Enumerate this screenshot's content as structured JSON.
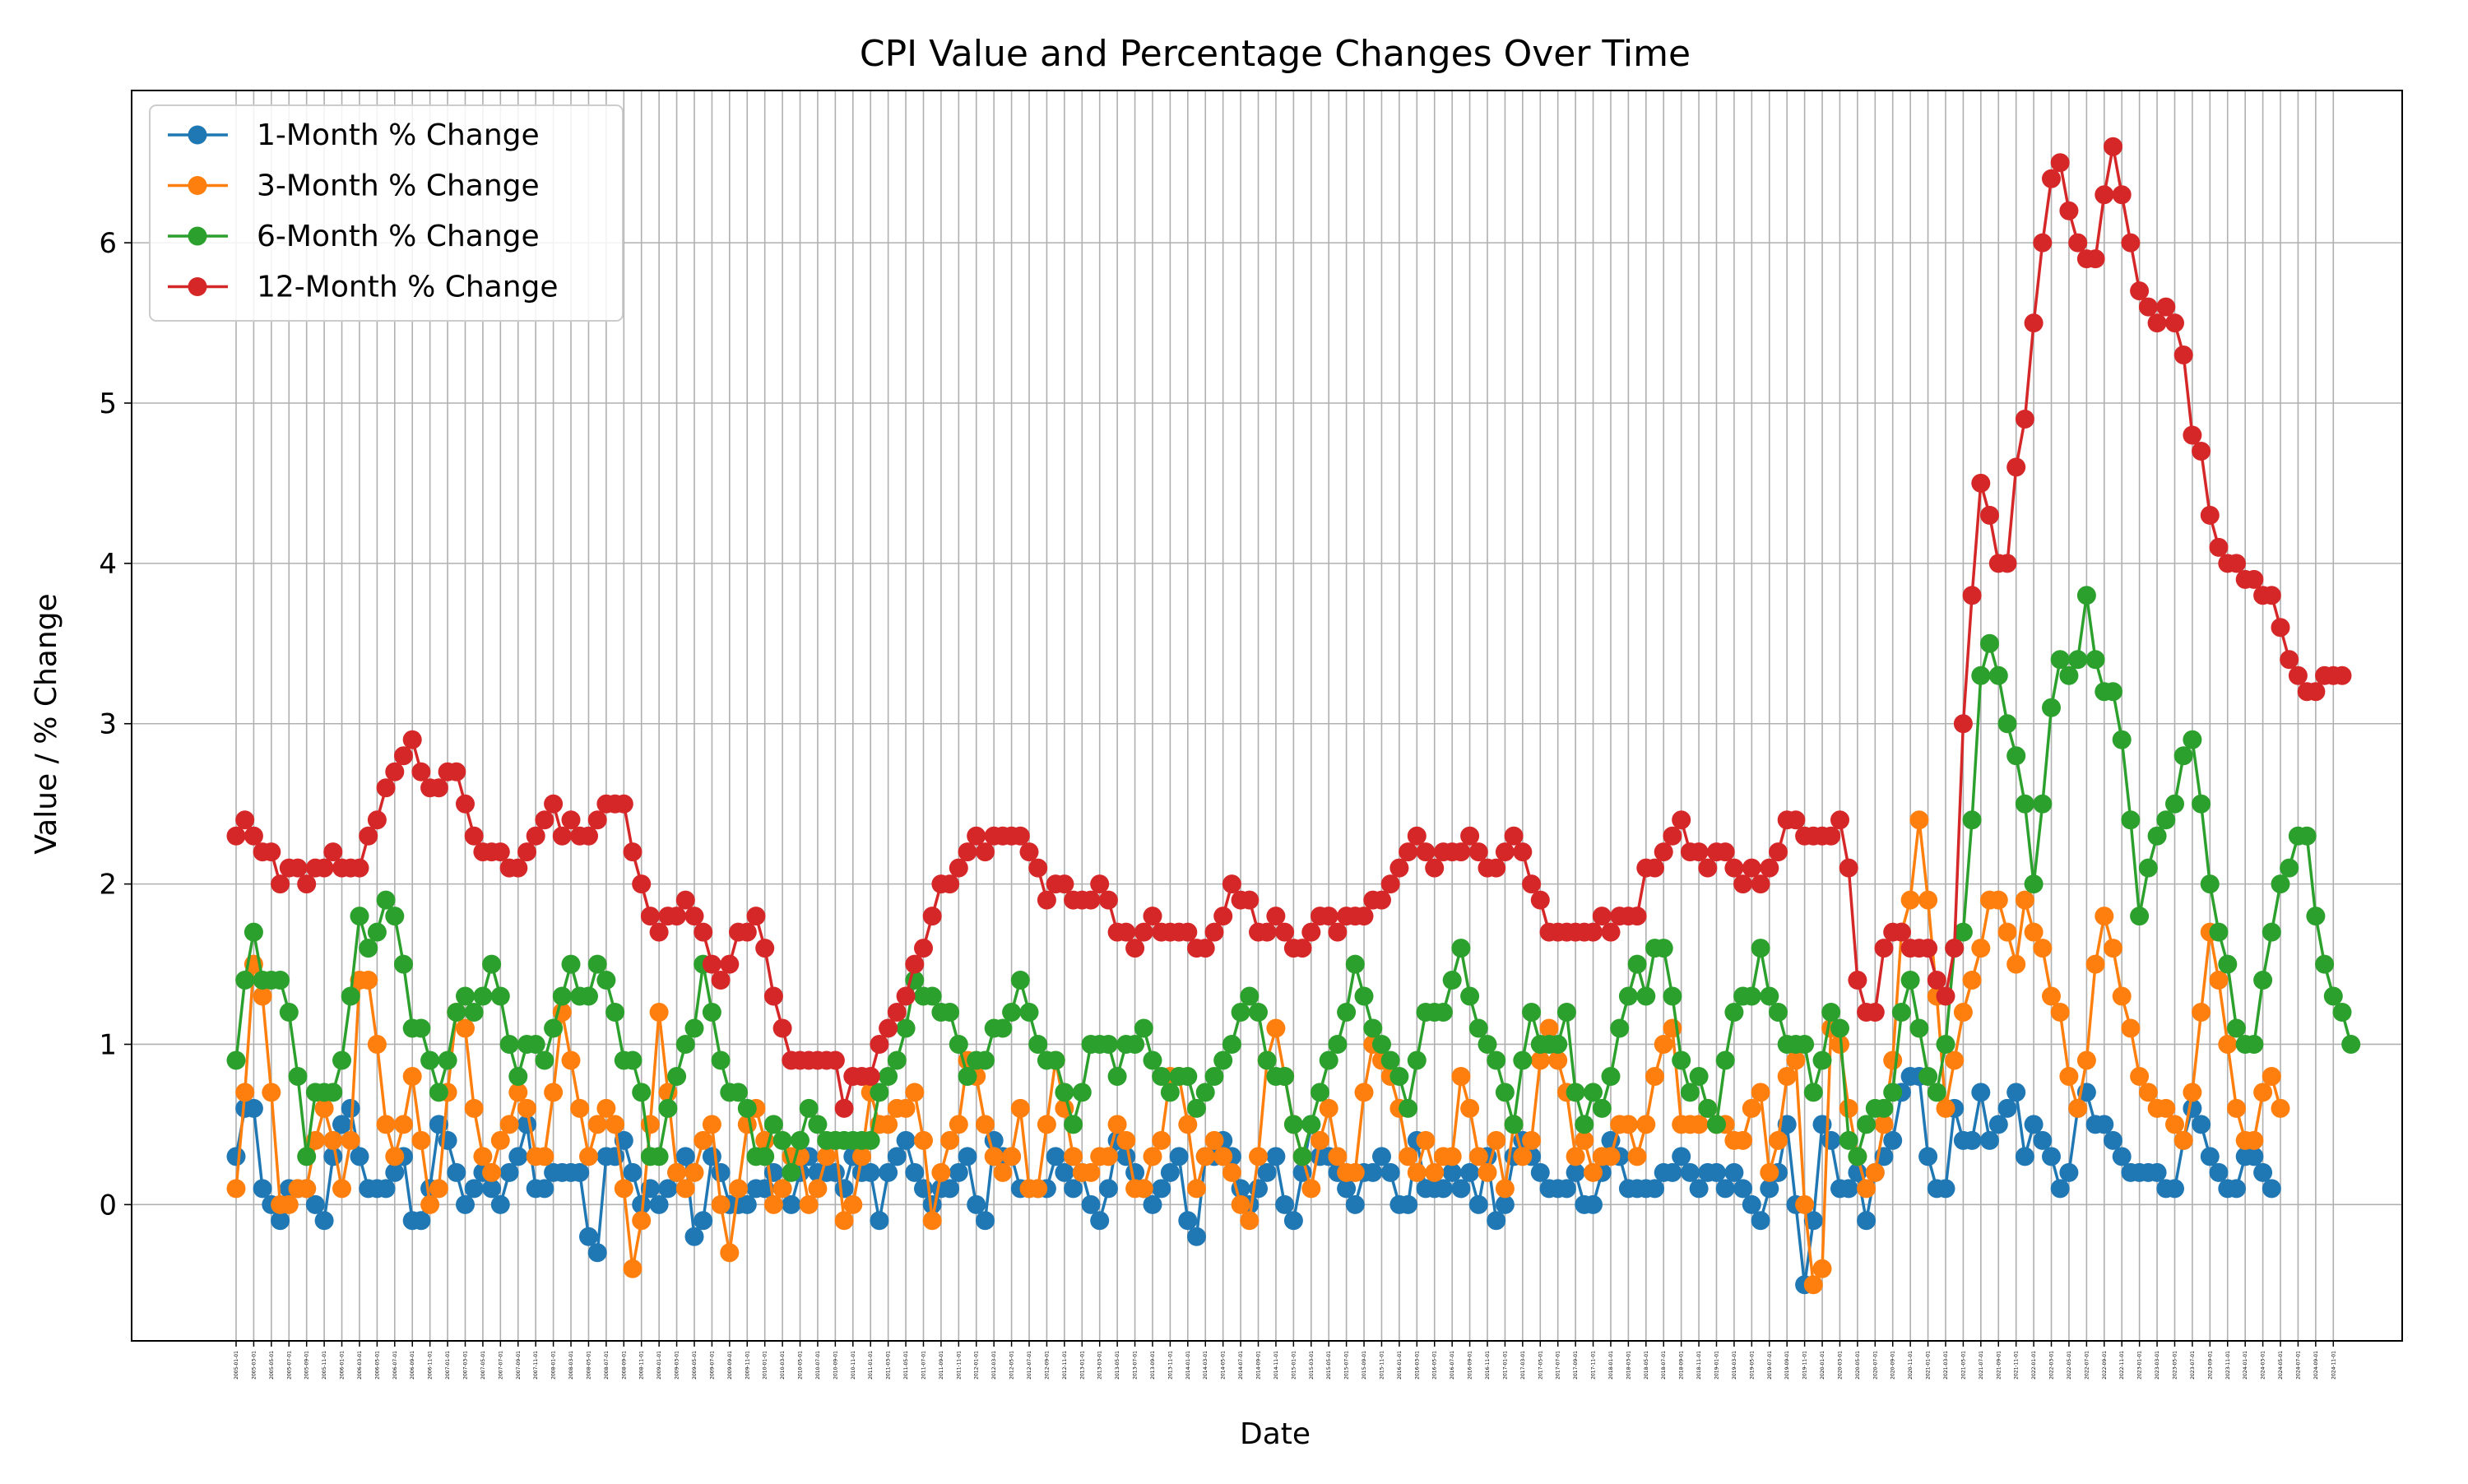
{
  "chart_data": {
    "type": "line",
    "title": "CPI Value and Percentage Changes Over Time",
    "xlabel": "Date",
    "ylabel": "Value / % Change",
    "ylim": [
      -0.85,
      6.95
    ],
    "yticks": [
      0,
      1,
      2,
      3,
      4,
      5,
      6
    ],
    "grid": true,
    "legend_position": "top-left",
    "x_start": "2005-01-01",
    "x_end": "2024-12-01",
    "x_tick_step_months": 2,
    "series": [
      {
        "name": "1-Month % Change",
        "color": "#1f77b4",
        "values": [
          0.3,
          0.6,
          0.6,
          0.1,
          0,
          -0.1,
          0.1,
          0.1,
          0.1,
          0,
          -0.1,
          0.3,
          0.5,
          0.6,
          0.3,
          0.1,
          0.1,
          0.1,
          0.2,
          0.3,
          -0.1,
          -0.1,
          0.1,
          0.5,
          0.4,
          0.2,
          0,
          0.1,
          0.2,
          0.1,
          0,
          0.2,
          0.3,
          0.5,
          0.1,
          0.1,
          0.2,
          0.2,
          0.2,
          0.2,
          -0.2,
          -0.3,
          0.3,
          0.3,
          0.4,
          0.2,
          0,
          0.1,
          0,
          0.1,
          0.2,
          0.3,
          -0.2,
          -0.1,
          0.3,
          0.2,
          0,
          0,
          0,
          0.1,
          0.1,
          0.2,
          0.1,
          0,
          0.2,
          0.3,
          0.2,
          0.2,
          0.2,
          0.1,
          0.3,
          0.2,
          0.2,
          -0.1,
          0.2,
          0.3,
          0.4,
          0.2,
          0.1,
          0,
          0.1,
          0.1,
          0.2,
          0.3,
          0,
          -0.1,
          0.4,
          0.3,
          0.3,
          0.1,
          0.1,
          0.1,
          0.1,
          0.3,
          0.2,
          0.1,
          0.2,
          0,
          -0.1,
          0.1,
          0.4,
          0.3,
          0.2,
          0.1,
          0,
          0.1,
          0.2,
          0.3,
          -0.1,
          -0.2,
          0.3,
          0.3,
          0.4,
          0.3,
          0.1,
          0,
          0.1,
          0.2,
          0.3,
          0,
          -0.1,
          0.2,
          0.5,
          0.3,
          0.3,
          0.2,
          0.1,
          0,
          0.2,
          0.2,
          0.3,
          0.2,
          0,
          0,
          0.4,
          0.1,
          0.1,
          0.1,
          0.2,
          0.1,
          0.2,
          0,
          0.3,
          -0.1,
          0,
          0.3,
          0.4,
          0.3,
          0.2,
          0.1,
          0.1,
          0.1,
          0.2,
          0,
          0,
          0.2,
          0.4,
          0.3,
          0.1,
          0.1,
          0.1,
          0.1,
          0.2,
          0.2,
          0.3,
          0.2,
          0.1,
          0.2,
          0.2,
          0.1,
          0.2,
          0.1,
          0,
          -0.1,
          0.1,
          0.2,
          0.5,
          0,
          -0.5,
          -0.1,
          0.5,
          0.4,
          0.1,
          0.1,
          0.2,
          -0.1,
          0.2,
          0.3,
          0.4,
          0.7,
          0.8,
          0.8,
          0.3,
          0.1,
          0.1,
          0.6,
          0.4,
          0.4,
          0.7,
          0.4,
          0.5,
          0.6,
          0.7,
          0.3,
          0.5,
          0.4,
          0.3,
          0.1,
          0.2,
          0.6,
          0.7,
          0.5,
          0.5,
          0.4,
          0.3,
          0.2,
          0.2,
          0.2,
          0.2,
          0.1,
          0.1,
          0.4,
          0.6,
          0.5,
          0.3,
          0.2,
          0.1,
          0.1,
          0.3,
          0.3,
          0.2,
          0.1
        ]
      },
      {
        "name": "3-Month % Change",
        "color": "#ff7f0e",
        "values": [
          0.1,
          0.7,
          1.5,
          1.3,
          0.7,
          0,
          0,
          0.1,
          0.1,
          0.4,
          0.6,
          0.4,
          0.1,
          0.4,
          1.4,
          1.4,
          1,
          0.5,
          0.3,
          0.5,
          0.8,
          0.4,
          0,
          0.1,
          0.7,
          1.2,
          1.1,
          0.6,
          0.3,
          0.2,
          0.4,
          0.5,
          0.7,
          0.6,
          0.3,
          0.3,
          0.7,
          1.2,
          0.9,
          0.6,
          0.3,
          0.5,
          0.6,
          0.5,
          0.1,
          -0.4,
          -0.1,
          0.5,
          1.2,
          0.7,
          0.2,
          0.1,
          0.2,
          0.4,
          0.5,
          0,
          -0.3,
          0.1,
          0.5,
          0.6,
          0.4,
          0,
          0.1,
          0.3,
          0.3,
          0,
          0.1,
          0.3,
          0.4,
          -0.1,
          0,
          0.3,
          0.7,
          0.5,
          0.5,
          0.6,
          0.6,
          0.7,
          0.4,
          -0.1,
          0.2,
          0.4,
          0.5,
          0.9,
          0.8,
          0.5,
          0.3,
          0.2,
          0.3,
          0.6,
          0.1,
          0.1,
          0.5,
          0.9,
          0.6,
          0.3,
          0.2,
          0.2,
          0.3,
          0.3,
          0.5,
          0.4,
          0.1,
          0.1,
          0.3,
          0.4,
          0.8,
          0.8,
          0.5,
          0.1,
          0.3,
          0.4,
          0.3,
          0.2,
          0,
          -0.1,
          0.3,
          0.9,
          1.1,
          0.8,
          0.5,
          0.3,
          0.1,
          0.4,
          0.6,
          0.3,
          0.2,
          0.2,
          0.7,
          1,
          0.9,
          0.8,
          0.6,
          0.3,
          0.2,
          0.4,
          0.2,
          0.3,
          0.3,
          0.8,
          0.6,
          0.3,
          0.2,
          0.4,
          0.1,
          0.5,
          0.3,
          0.4,
          0.9,
          1.1,
          0.9,
          0.7,
          0.3,
          0.4,
          0.2,
          0.3,
          0.3,
          0.5,
          0.5,
          0.3,
          0.5,
          0.8,
          1,
          1.1,
          0.5,
          0.5,
          0.5,
          0.6,
          0.5,
          0.5,
          0.4,
          0.4,
          0.6,
          0.7,
          0.2,
          0.4,
          0.8,
          0.9,
          0,
          -0.5,
          -0.4,
          1.1,
          1,
          0.6,
          0.3,
          0.1,
          0.2,
          0.5,
          0.9,
          1.7,
          1.9,
          2.4,
          1.9,
          1.3,
          0.6,
          0.9,
          1.2,
          1.4,
          1.6,
          1.9,
          1.9,
          1.7,
          1.5,
          1.9,
          1.7,
          1.6,
          1.3,
          1.2,
          0.8,
          0.6,
          0.9,
          1.5,
          1.8,
          1.6,
          1.3,
          1.1,
          0.8,
          0.7,
          0.6,
          0.6,
          0.5,
          0.4,
          0.7,
          1.2,
          1.7,
          1.4,
          1,
          0.6,
          0.4,
          0.4,
          0.7,
          0.8,
          0.6
        ]
      },
      {
        "name": "6-Month % Change",
        "color": "#2ca02c",
        "values": [
          0.9,
          1.4,
          1.7,
          1.4,
          1.4,
          1.4,
          1.2,
          0.8,
          0.3,
          0.7,
          0.7,
          0.7,
          0.9,
          1.3,
          1.8,
          1.6,
          1.7,
          1.9,
          1.8,
          1.5,
          1.1,
          1.1,
          0.9,
          0.7,
          0.9,
          1.2,
          1.3,
          1.2,
          1.3,
          1.5,
          1.3,
          1,
          0.8,
          1,
          1,
          0.9,
          1.1,
          1.3,
          1.5,
          1.3,
          1.3,
          1.5,
          1.4,
          1.2,
          0.9,
          0.9,
          0.7,
          0.3,
          0.3,
          0.6,
          0.8,
          1,
          1.1,
          1.5,
          1.2,
          0.9,
          0.7,
          0.7,
          0.6,
          0.3,
          0.3,
          0.5,
          0.4,
          0.2,
          0.4,
          0.6,
          0.5,
          0.4,
          0.4,
          0.4,
          0.4,
          0.4,
          0.4,
          0.7,
          0.8,
          0.9,
          1.1,
          1.4,
          1.3,
          1.3,
          1.2,
          1.2,
          1,
          0.8,
          0.9,
          0.9,
          1.1,
          1.1,
          1.2,
          1.4,
          1.2,
          1,
          0.9,
          0.9,
          0.7,
          0.5,
          0.7,
          1,
          1,
          1,
          0.8,
          1,
          1,
          1.1,
          0.9,
          0.8,
          0.7,
          0.8,
          0.8,
          0.6,
          0.7,
          0.8,
          0.9,
          1,
          1.2,
          1.3,
          1.2,
          0.9,
          0.8,
          0.8,
          0.5,
          0.3,
          0.5,
          0.7,
          0.9,
          1,
          1.2,
          1.5,
          1.3,
          1.1,
          1,
          0.9,
          0.8,
          0.6,
          0.9,
          1.2,
          1.2,
          1.2,
          1.4,
          1.6,
          1.3,
          1.1,
          1,
          0.9,
          0.7,
          0.5,
          0.9,
          1.2,
          1,
          1,
          1,
          1.2,
          0.7,
          0.5,
          0.7,
          0.6,
          0.8,
          1.1,
          1.3,
          1.5,
          1.3,
          1.6,
          1.6,
          1.3,
          0.9,
          0.7,
          0.8,
          0.6,
          0.5,
          0.9,
          1.2,
          1.3,
          1.3,
          1.6,
          1.3,
          1.2,
          1,
          1,
          1,
          0.7,
          0.9,
          1.2,
          1.1,
          0.4,
          0.3,
          0.5,
          0.6,
          0.6,
          0.7,
          1.2,
          1.4,
          1.1,
          0.8,
          0.7,
          1,
          1.6,
          1.7,
          2.4,
          3.3,
          3.5,
          3.3,
          3,
          2.8,
          2.5,
          2,
          2.5,
          3.1,
          3.4,
          3.3,
          3.4,
          3.8,
          3.4,
          3.2,
          3.2,
          2.9,
          2.4,
          1.8,
          2.1,
          2.3,
          2.4,
          2.5,
          2.8,
          2.9,
          2.5,
          2,
          1.7,
          1.5,
          1.1,
          1,
          1,
          1.4,
          1.7,
          2,
          2.1,
          2.3,
          2.3,
          1.8,
          1.5,
          1.3,
          1.2,
          1
        ]
      },
      {
        "name": "12-Month % Change",
        "color": "#d62728",
        "values": [
          2.3,
          2.4,
          2.3,
          2.2,
          2.2,
          2,
          2.1,
          2.1,
          2,
          2.1,
          2.1,
          2.2,
          2.1,
          2.1,
          2.1,
          2.3,
          2.4,
          2.6,
          2.7,
          2.8,
          2.9,
          2.7,
          2.6,
          2.6,
          2.7,
          2.7,
          2.5,
          2.3,
          2.2,
          2.2,
          2.2,
          2.1,
          2.1,
          2.2,
          2.3,
          2.4,
          2.5,
          2.3,
          2.4,
          2.3,
          2.3,
          2.4,
          2.5,
          2.5,
          2.5,
          2.2,
          2,
          1.8,
          1.7,
          1.8,
          1.8,
          1.9,
          1.8,
          1.7,
          1.5,
          1.4,
          1.5,
          1.7,
          1.7,
          1.8,
          1.6,
          1.3,
          1.1,
          0.9,
          0.9,
          0.9,
          0.9,
          0.9,
          0.9,
          0.6,
          0.8,
          0.8,
          0.8,
          1,
          1.1,
          1.2,
          1.3,
          1.5,
          1.6,
          1.8,
          2,
          2,
          2.1,
          2.2,
          2.3,
          2.2,
          2.3,
          2.3,
          2.3,
          2.3,
          2.2,
          2.1,
          1.9,
          2,
          2,
          1.9,
          1.9,
          1.9,
          2,
          1.9,
          1.7,
          1.7,
          1.6,
          1.7,
          1.8,
          1.7,
          1.7,
          1.7,
          1.7,
          1.6,
          1.6,
          1.7,
          1.8,
          2,
          1.9,
          1.9,
          1.7,
          1.7,
          1.8,
          1.7,
          1.6,
          1.6,
          1.7,
          1.8,
          1.8,
          1.7,
          1.8,
          1.8,
          1.8,
          1.9,
          1.9,
          2,
          2.1,
          2.2,
          2.3,
          2.2,
          2.1,
          2.2,
          2.2,
          2.2,
          2.3,
          2.2,
          2.1,
          2.1,
          2.2,
          2.3,
          2.2,
          2,
          1.9,
          1.7,
          1.7,
          1.7,
          1.7,
          1.7,
          1.7,
          1.8,
          1.7,
          1.8,
          1.8,
          1.8,
          2.1,
          2.1,
          2.2,
          2.3,
          2.4,
          2.2,
          2.2,
          2.1,
          2.2,
          2.2,
          2.1,
          2,
          2.1,
          2,
          2.1,
          2.2,
          2.4,
          2.4,
          2.3,
          2.3,
          2.3,
          2.3,
          2.4,
          2.1,
          1.4,
          1.2,
          1.2,
          1.6,
          1.7,
          1.7,
          1.6,
          1.6,
          1.6,
          1.4,
          1.3,
          1.6,
          3,
          3.8,
          4.5,
          4.3,
          4,
          4,
          4.6,
          4.9,
          5.5,
          6,
          6.4,
          6.5,
          6.2,
          6,
          5.9,
          5.9,
          6.3,
          6.6,
          6.3,
          6,
          5.7,
          5.6,
          5.5,
          5.6,
          5.5,
          5.3,
          4.8,
          4.7,
          4.3,
          4.1,
          4,
          4,
          3.9,
          3.9,
          3.8,
          3.8,
          3.6,
          3.4,
          3.3,
          3.2,
          3.2,
          3.3,
          3.3,
          3.3
        ]
      }
    ]
  }
}
